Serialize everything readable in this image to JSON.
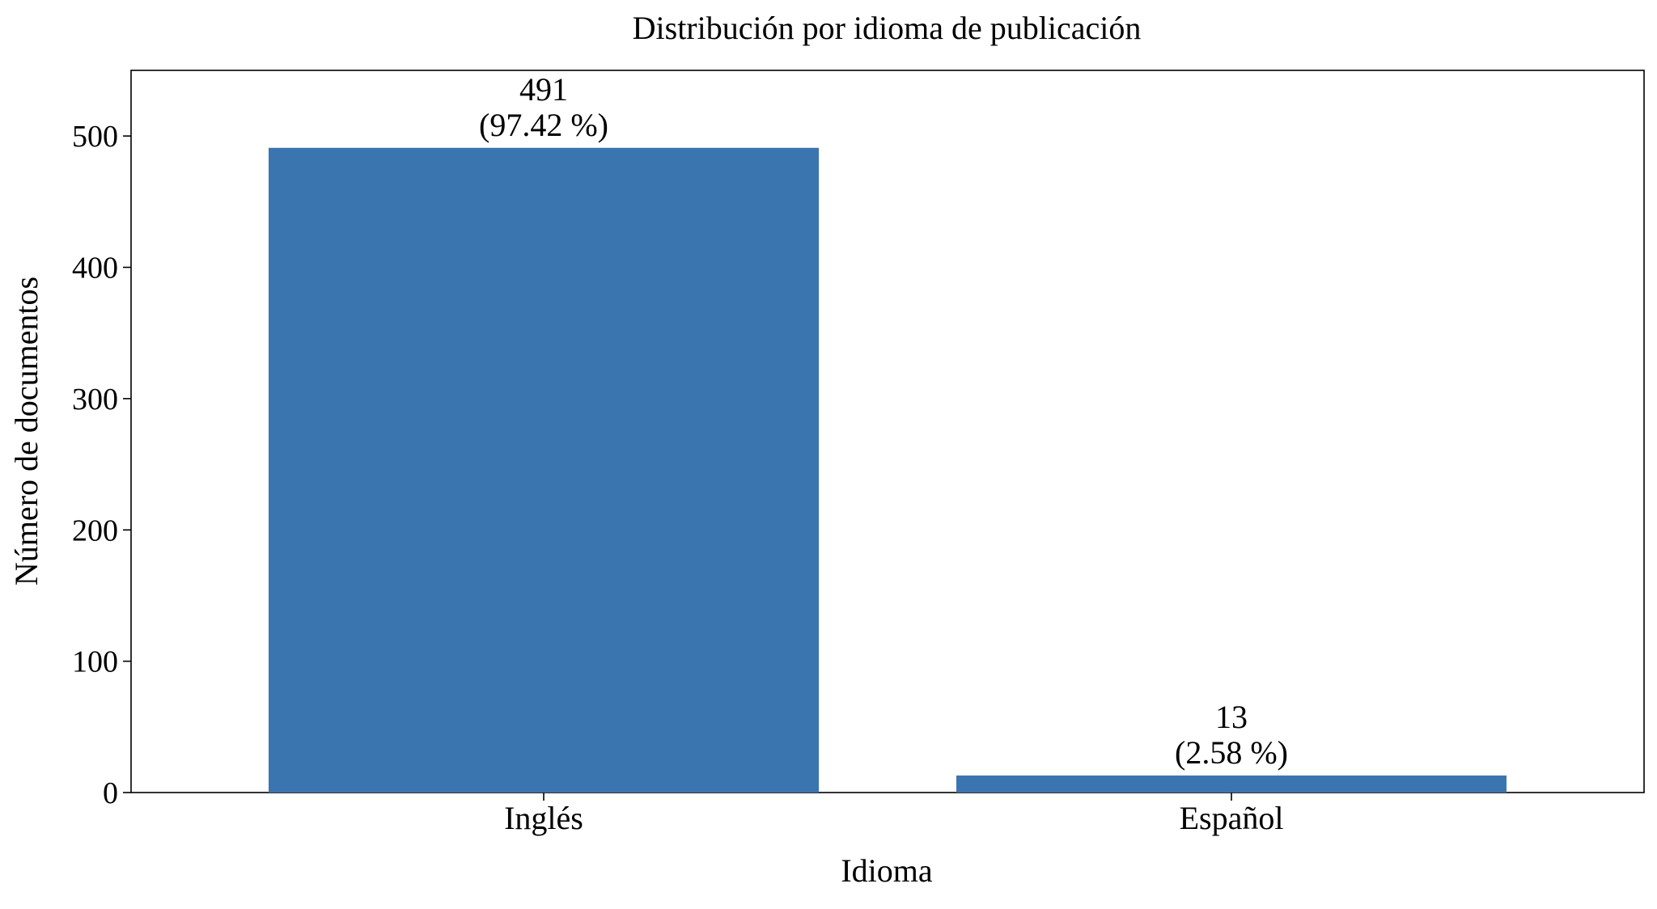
{
  "chart_data": {
    "type": "bar",
    "title": "Distribución por idioma de publicación",
    "xlabel": "Idioma",
    "ylabel": "Número de documentos",
    "categories": [
      "Inglés",
      "Español"
    ],
    "values": [
      491,
      13
    ],
    "value_labels": [
      [
        "491",
        "(97.42 %)"
      ],
      [
        "13",
        "(2.58 %)"
      ]
    ],
    "ylim": [
      0,
      550
    ],
    "yticks": [
      0,
      100,
      200,
      300,
      400,
      500
    ],
    "grid": false,
    "legend": "none",
    "bar_color": "#3b75af"
  }
}
